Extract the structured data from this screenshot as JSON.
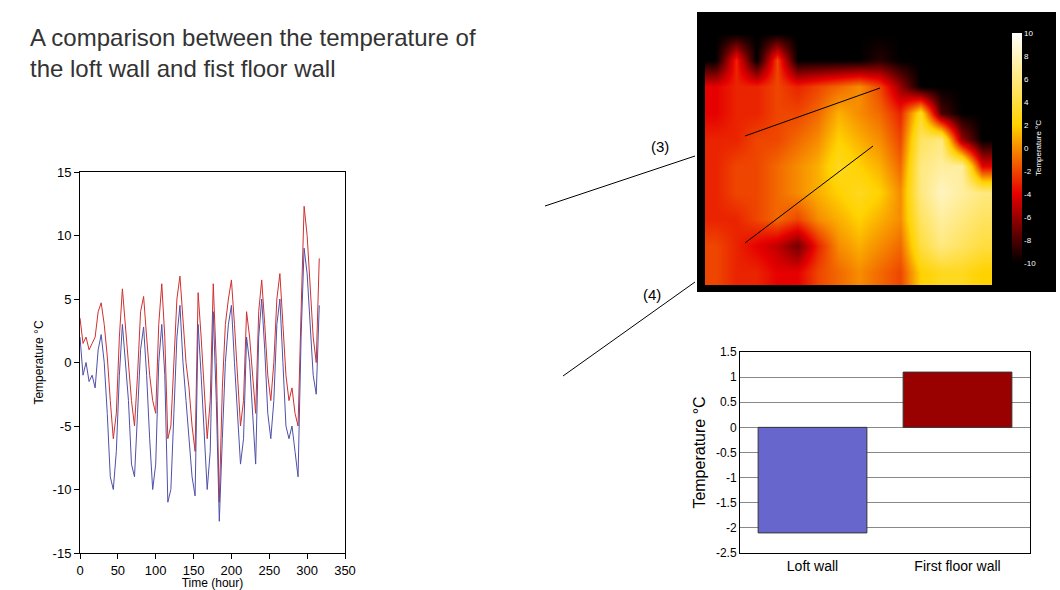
{
  "chart_data": [
    {
      "type": "line",
      "title": "A comparison between the temperature of the loft wall and fist floor wall",
      "x_label": "Time (hour)",
      "y_label": "Temperature °C",
      "xlim": [
        0,
        350
      ],
      "xticks": [
        0,
        50,
        100,
        150,
        200,
        250,
        300,
        350
      ],
      "ylim": [
        -15,
        15
      ],
      "yticks": [
        -15,
        -10,
        -5,
        0,
        5,
        10,
        15
      ],
      "grid": false,
      "annotations": [
        "(3)",
        "(4)"
      ],
      "x": [
        0,
        4,
        8,
        12,
        16,
        20,
        24,
        28,
        32,
        36,
        40,
        44,
        48,
        52,
        56,
        60,
        64,
        68,
        72,
        76,
        80,
        84,
        88,
        92,
        96,
        100,
        104,
        108,
        112,
        116,
        120,
        124,
        128,
        132,
        136,
        140,
        144,
        148,
        152,
        156,
        160,
        164,
        168,
        172,
        176,
        180,
        184,
        188,
        192,
        196,
        200,
        204,
        208,
        212,
        216,
        220,
        224,
        228,
        232,
        236,
        240,
        244,
        248,
        252,
        256,
        260,
        264,
        268,
        272,
        276,
        280,
        284,
        288,
        292,
        296,
        300,
        304,
        308,
        312,
        316
      ],
      "series": [
        {
          "color": "#d03030",
          "values": [
            3.5,
            1.5,
            2,
            1,
            1.5,
            2,
            4,
            4.7,
            3,
            0.5,
            -3,
            -6,
            -4,
            2,
            5.8,
            3,
            0,
            -3,
            -5,
            -1,
            4,
            5.2,
            2,
            -1,
            -3,
            -4,
            3,
            6.2,
            2,
            -6,
            -5,
            0,
            5,
            6.8,
            3,
            0,
            -2,
            -5,
            -7,
            5.5,
            2,
            -2,
            -6,
            -3,
            6.2,
            0,
            -11,
            -2,
            3,
            5,
            6.5,
            3,
            -1,
            -5,
            -3,
            4,
            2,
            -1,
            -4,
            4,
            6.5,
            3,
            -1,
            -3,
            0,
            5,
            7,
            3,
            -1,
            -3,
            -2,
            -4,
            -5,
            4,
            12.3,
            10,
            6,
            2,
            0,
            8.2
          ]
        },
        {
          "color": "#5050a8",
          "values": [
            2,
            -1,
            0,
            -1.5,
            -1,
            -2,
            1,
            2.2,
            0,
            -4,
            -9,
            -10,
            -7,
            -1,
            3,
            0,
            -3,
            -8,
            -9,
            -4,
            1,
            2.8,
            -1,
            -6,
            -10,
            -8,
            0,
            3,
            -1,
            -11,
            -10,
            -4,
            2,
            4.5,
            0,
            -3,
            -6,
            -9,
            -10.5,
            3,
            -1,
            -6,
            -10,
            -7,
            4,
            -3,
            -12.5,
            -6,
            0,
            3,
            4.5,
            0,
            -4,
            -8,
            -6,
            2,
            0,
            -4,
            -8,
            2,
            5,
            1,
            -4,
            -6,
            -3,
            3,
            5,
            0,
            -5,
            -6,
            -5,
            -7,
            -9,
            2,
            9,
            7,
            3,
            -1,
            -2.5,
            4.5
          ]
        }
      ]
    },
    {
      "type": "bar",
      "y_label": "Temperature °C",
      "categories": [
        "Loft wall",
        "First floor wall"
      ],
      "values": [
        -2.1,
        1.1
      ],
      "colors": [
        "#6666cc",
        "#990000"
      ],
      "ylim": [
        -2.5,
        1.5
      ],
      "yticks": [
        -2.5,
        -2,
        -1.5,
        -1,
        -0.5,
        0,
        0.5,
        1,
        1.5
      ],
      "grid": true
    },
    {
      "type": "heatmap",
      "tick_labels": false,
      "cells": [
        [
          -10,
          -10,
          -10,
          -10,
          -10,
          -10,
          -10,
          -10,
          -10,
          -10,
          -10,
          -10,
          -10,
          -10
        ],
        [
          -10,
          -3,
          -10,
          -2,
          -10,
          -10,
          -10,
          -10,
          -9,
          -10,
          -10,
          -10,
          -10,
          -10
        ],
        [
          -4,
          -3,
          -3,
          -2,
          -3,
          -2,
          -1,
          0,
          -2,
          -6,
          -10,
          -10,
          -10,
          -10
        ],
        [
          -4,
          -3,
          -3,
          -2,
          -2,
          -1,
          1,
          0,
          -1,
          -3,
          3,
          -8,
          -10,
          -10
        ],
        [
          -3,
          -3,
          -2,
          -2,
          -1,
          0,
          2,
          1,
          0,
          -2,
          5,
          6,
          -6,
          -10
        ],
        [
          -3,
          -2,
          -2,
          -1,
          0,
          1,
          3,
          2,
          1,
          -1,
          6,
          7,
          7,
          -4
        ],
        [
          -3,
          -2,
          -2,
          -1,
          0,
          1,
          2,
          3,
          2,
          0,
          6,
          8,
          7,
          6
        ],
        [
          -3,
          -3,
          -2,
          -1,
          -2,
          0,
          1,
          2,
          1,
          0,
          5,
          7,
          6,
          5
        ],
        [
          -2,
          -3,
          -4,
          -5,
          -7,
          -3,
          0,
          1,
          0,
          -1,
          4,
          6,
          5,
          4
        ],
        [
          -2,
          -3,
          -3,
          -4,
          -4,
          -2,
          -1,
          0,
          -1,
          -2,
          2,
          3,
          3,
          2
        ]
      ],
      "colorbar": {
        "title": "Temperature °C",
        "range": [
          -10,
          10
        ],
        "ticks": [
          -10,
          -8,
          -6,
          -4,
          -2,
          0,
          2,
          4,
          6,
          8,
          10
        ]
      }
    }
  ]
}
